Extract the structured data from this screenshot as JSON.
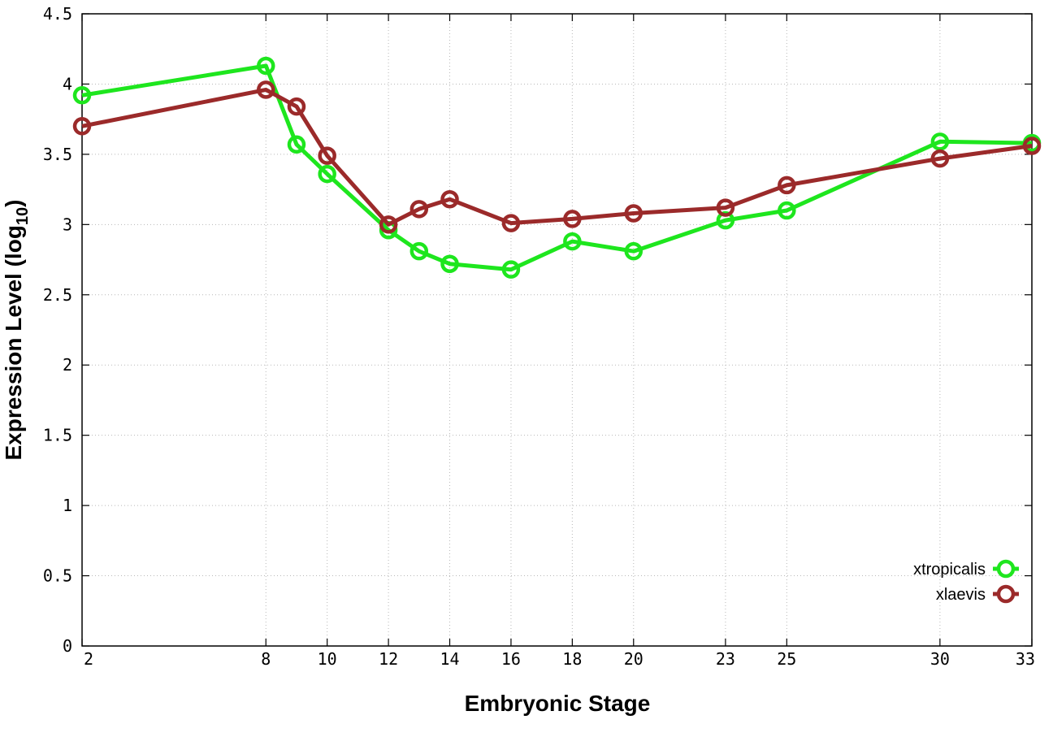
{
  "chart_data": {
    "type": "line",
    "x_title": "Embryonic Stage",
    "y_title_main": "Expression Level (log",
    "y_title_sub": "10",
    "y_title_end": ")",
    "x_ticks": [
      2,
      8,
      10,
      12,
      14,
      16,
      18,
      20,
      23,
      25,
      30,
      33
    ],
    "y_ticks": [
      "0",
      "0.5",
      "1",
      "1.5",
      "2",
      "2.5",
      "3",
      "3.5",
      "4",
      "4.5"
    ],
    "xlim": [
      2,
      33
    ],
    "ylim": [
      0,
      4.5
    ],
    "grid": true,
    "legend_position": "bottom-right",
    "series": [
      {
        "name": "xtropicalis",
        "color": "#1ee61e",
        "x": [
          2,
          8,
          9,
          10,
          12,
          13,
          14,
          16,
          18,
          20,
          23,
          25,
          30,
          33
        ],
        "y": [
          3.92,
          4.13,
          3.57,
          3.36,
          2.96,
          2.81,
          2.72,
          2.68,
          2.88,
          2.81,
          3.03,
          3.1,
          3.59,
          3.58
        ]
      },
      {
        "name": "xlaevis",
        "color": "#9b2a2a",
        "x": [
          2,
          8,
          9,
          10,
          12,
          13,
          14,
          16,
          18,
          20,
          23,
          25,
          30,
          33
        ],
        "y": [
          3.7,
          3.96,
          3.84,
          3.49,
          3.0,
          3.11,
          3.18,
          3.01,
          3.04,
          3.08,
          3.12,
          3.28,
          3.47,
          3.56
        ]
      }
    ]
  }
}
